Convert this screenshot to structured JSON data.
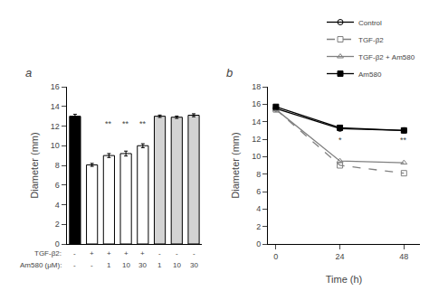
{
  "chart_data": [
    {
      "type": "bar",
      "title": "a",
      "ylabel": "Diameter (mm)",
      "label_rows": [
        {
          "label": "TGF-β2:",
          "labels": [
            "-",
            "+",
            "+",
            "+",
            "+",
            "-",
            "-",
            "-"
          ]
        },
        {
          "label": "Am580 (μM):",
          "labels": [
            "-",
            "-",
            "1",
            "10",
            "30",
            "1",
            "10",
            "30"
          ]
        }
      ],
      "values": [
        13.0,
        8.05,
        9.0,
        9.2,
        10.0,
        13.0,
        12.9,
        13.1
      ],
      "errors": [
        0.2,
        0.15,
        0.2,
        0.25,
        0.2,
        0.12,
        0.12,
        0.15
      ],
      "colors": [
        "black",
        "white",
        "white",
        "white",
        "white",
        "lightgray",
        "lightgray",
        "lightgray"
      ],
      "ylim": [
        0,
        16
      ],
      "yticks": [
        0,
        2,
        4,
        6,
        8,
        10,
        12,
        14,
        16
      ],
      "grid": false,
      "tick_labels": "y",
      "annotations": [
        {
          "x": 2,
          "y": 11.6,
          "text": "**"
        },
        {
          "x": 3,
          "y": 11.6,
          "text": "**"
        },
        {
          "x": 4,
          "y": 11.6,
          "text": "**"
        }
      ]
    },
    {
      "type": "line",
      "title": "b",
      "xlabel": "Time (h)",
      "ylabel": "Diameter (mm)",
      "x": [
        0,
        24,
        48
      ],
      "series": [
        {
          "name": "Control",
          "values": [
            15.5,
            13.2,
            13.0
          ],
          "color": "black",
          "marker": "circle-open",
          "line_style": "solid"
        },
        {
          "name": "TGF-β2",
          "values": [
            15.4,
            9.0,
            8.1
          ],
          "color": "gray",
          "marker": "square-open",
          "line_style": "dash"
        },
        {
          "name": "TGF-β2 + Am580",
          "values": [
            15.4,
            9.5,
            9.3
          ],
          "color": "gray",
          "marker": "triangle-up-open",
          "line_style": "solid"
        },
        {
          "name": "Am580",
          "values": [
            15.7,
            13.3,
            13.0
          ],
          "color": "black",
          "marker": "square",
          "line_style": "solid"
        }
      ],
      "xlim": [
        -3,
        54
      ],
      "xticks": [
        0,
        24,
        48
      ],
      "ylim": [
        0,
        18
      ],
      "yticks": [
        0,
        2,
        4,
        6,
        8,
        10,
        12,
        14,
        16,
        18
      ],
      "grid": false,
      "legend": "upper right",
      "annotations": [
        {
          "x": 24,
          "y": 11.2,
          "text": "*"
        },
        {
          "x": 48,
          "y": 11.2,
          "text": "**"
        }
      ]
    }
  ]
}
